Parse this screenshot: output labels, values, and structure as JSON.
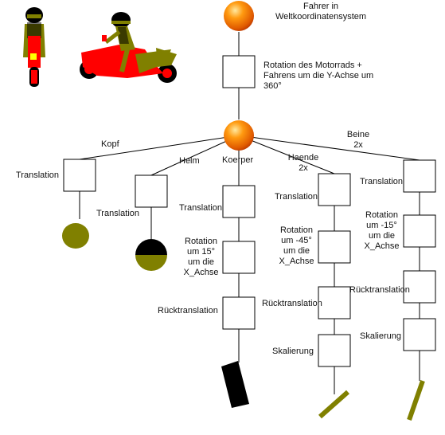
{
  "title": "Fahrer in\nWeltkoordinatensystem",
  "root_rotation": "Rotation des Motorrads +\nFahrens  um die Y-Achse um\n360°",
  "branches": {
    "kopf": {
      "label": "Kopf",
      "steps": [
        "Translation"
      ]
    },
    "helm": {
      "label": "Helm",
      "steps": [
        "Translation"
      ]
    },
    "koerper": {
      "label": "Koerper",
      "steps": [
        "Translation",
        "Rotation\num 15°\num die\nX_Achse",
        "Rücktranslation"
      ]
    },
    "haende": {
      "label": "Haende\n2x",
      "steps": [
        "Translation",
        "Rotation\num -45°\num die\nX_Achse",
        "Rücktranslation",
        "Skalierung"
      ]
    },
    "beine": {
      "label": "Beine\n2x",
      "steps": [
        "Translation",
        "Rotation\num -15°\num die\nX_Achse",
        "Rücktranslation",
        "Skalierung"
      ]
    }
  },
  "colors": {
    "olive": "#808000",
    "black": "#000000",
    "bike_red": "#ff0000",
    "sphere_orange": "#ff8a00",
    "sphere_dark": "#c33800",
    "line": "#000000"
  }
}
